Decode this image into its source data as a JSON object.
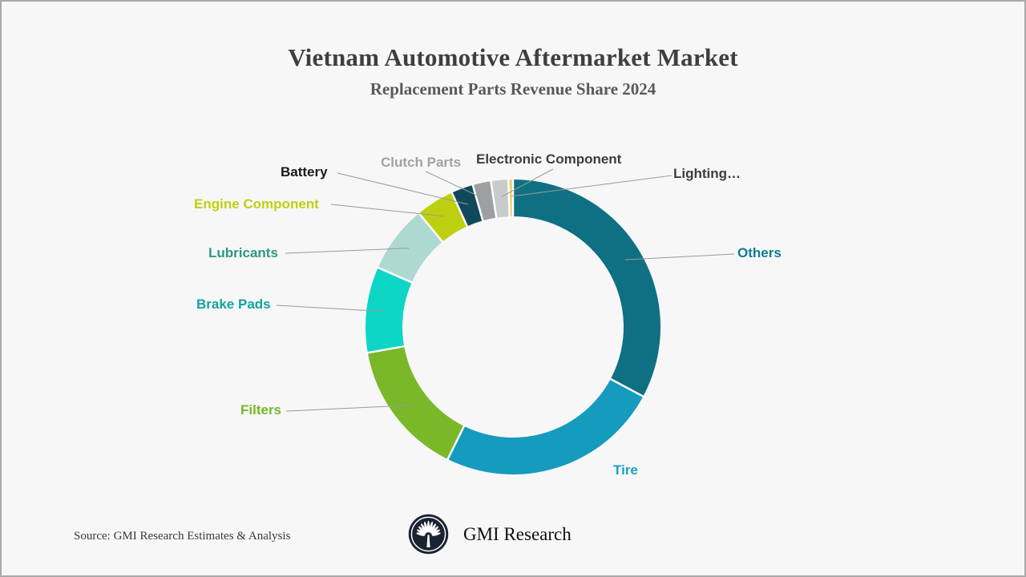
{
  "page": {
    "background": "#f7f7f7",
    "border_color": "#a9a9a9",
    "leader_line_color": "#9a9a9a"
  },
  "header": {
    "title": "Vietnam Automotive Aftermarket Market",
    "subtitle": "Replacement Parts Revenue Share 2024"
  },
  "chart_data": {
    "type": "pie",
    "subtype": "donut",
    "title": "Vietnam Automotive Aftermarket Market — Replacement Parts Revenue Share 2024",
    "unit": "% of revenue (estimated from arc angles; no numeric labels shown)",
    "start_angle_deg": 0,
    "direction": "clockwise",
    "legend_position": "outside labels with leader lines",
    "slices": [
      {
        "label": "Others",
        "value": 32.8,
        "color": "#0f7084",
        "label_color": "#0c7d96"
      },
      {
        "label": "Tire",
        "value": 24.5,
        "color": "#149bbd",
        "label_color": "#199fc4"
      },
      {
        "label": "Filters",
        "value": 14.9,
        "color": "#7ab829",
        "label_color": "#76b82a"
      },
      {
        "label": "Brake Pads",
        "value": 9.4,
        "color": "#0ed6c6",
        "label_color": "#14a39b"
      },
      {
        "label": "Lubricants",
        "value": 7.4,
        "color": "#aed9d3",
        "label_color": "#2d9687"
      },
      {
        "label": "Engine Component",
        "value": 4.2,
        "color": "#bdd00f",
        "label_color": "#bfd00e"
      },
      {
        "label": "Battery",
        "value": 2.4,
        "color": "#11495c",
        "label_color": "#1a1a1a"
      },
      {
        "label": "Clutch Parts",
        "value": 2.0,
        "color": "#9da0a2",
        "label_color": "#a2a2a2"
      },
      {
        "label": "Electronic Component",
        "value": 1.9,
        "color": "#c9cacc",
        "label_color": "#3d3d3d"
      },
      {
        "label": "Lighting…",
        "value": 0.5,
        "color": "#f0d164",
        "label_color": "#3d3d3d"
      }
    ]
  },
  "footer": {
    "source": "Source: GMI Research Estimates & Analysis",
    "brand": "GMI Research",
    "logo_icon": "palm-fan-emblem"
  }
}
